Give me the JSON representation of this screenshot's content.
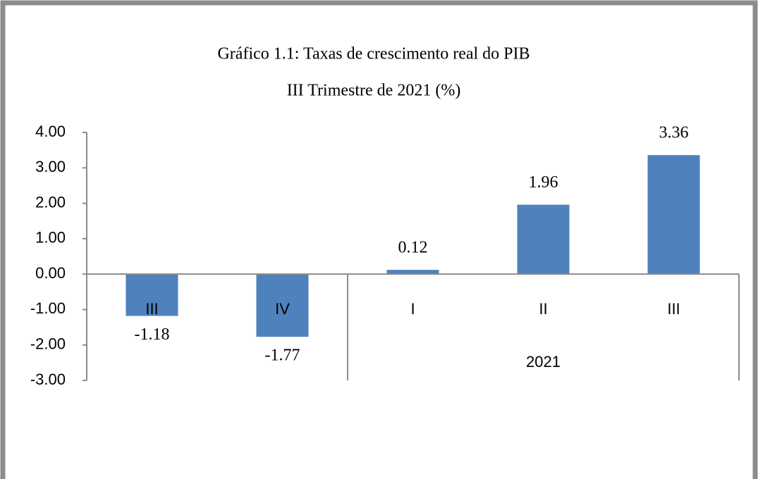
{
  "chart_data": {
    "type": "bar",
    "title": "Gráfico 1.1: Taxas de crescimento real do PIB",
    "subtitle": "III Trimestre de 2021 (%)",
    "categories": [
      "III",
      "IV",
      "I",
      "II",
      "III"
    ],
    "category_groups": [
      null,
      null,
      "2021",
      "2021",
      "2021"
    ],
    "values": [
      -1.18,
      -1.77,
      0.12,
      1.96,
      3.36
    ],
    "color": "#4f81bd",
    "ylim": [
      -3,
      4
    ],
    "yticks": [
      {
        "value": 4,
        "label": "4.00"
      },
      {
        "value": 3,
        "label": "3.00"
      },
      {
        "value": 2,
        "label": "2.00"
      },
      {
        "value": 1,
        "label": "1.00"
      },
      {
        "value": 0,
        "label": "0.00"
      },
      {
        "value": -1,
        "label": "-1.00"
      },
      {
        "value": -2,
        "label": "-2.00"
      },
      {
        "value": -3,
        "label": "-3.00"
      }
    ],
    "grid": false
  }
}
